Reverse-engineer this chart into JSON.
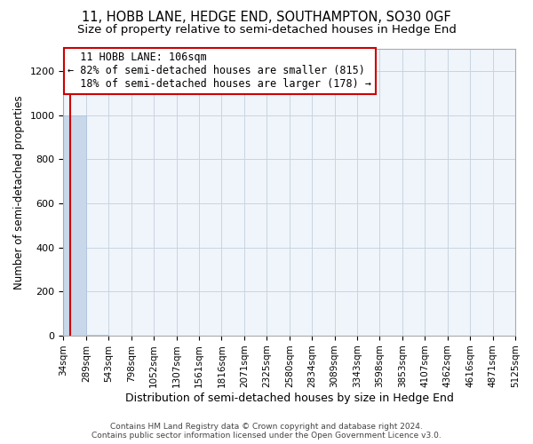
{
  "title": "11, HOBB LANE, HEDGE END, SOUTHAMPTON, SO30 0GF",
  "subtitle": "Size of property relative to semi-detached houses in Hedge End",
  "xlabel": "Distribution of semi-detached houses by size in Hedge End",
  "ylabel": "Number of semi-detached properties",
  "property_size": 106,
  "property_label": "11 HOBB LANE: 106sqm",
  "pct_smaller": 82,
  "count_smaller": 815,
  "pct_larger": 18,
  "count_larger": 178,
  "bar_color": "#c8d8ea",
  "bar_edge_color": "#aac0d8",
  "annotation_box_color": "#ffffff",
  "annotation_box_edge_color": "#cc0000",
  "vline_color": "#cc0000",
  "grid_color": "#c8d4e0",
  "footer_text": "Contains HM Land Registry data © Crown copyright and database right 2024.\nContains public sector information licensed under the Open Government Licence v3.0.",
  "bin_edges": [
    34,
    289,
    543,
    798,
    1052,
    1307,
    1561,
    1816,
    2071,
    2325,
    2580,
    2834,
    3089,
    3343,
    3598,
    3853,
    4107,
    4362,
    4616,
    4871,
    5125
  ],
  "bin_labels": [
    "34sqm",
    "289sqm",
    "543sqm",
    "798sqm",
    "1052sqm",
    "1307sqm",
    "1561sqm",
    "1816sqm",
    "2071sqm",
    "2325sqm",
    "2580sqm",
    "2834sqm",
    "3089sqm",
    "3343sqm",
    "3598sqm",
    "3853sqm",
    "4107sqm",
    "4362sqm",
    "4616sqm",
    "4871sqm",
    "5125sqm"
  ],
  "bar_heights": [
    1000,
    3,
    1,
    0,
    0,
    0,
    0,
    0,
    0,
    0,
    0,
    0,
    0,
    0,
    0,
    0,
    0,
    0,
    0,
    0
  ],
  "ylim": [
    0,
    1300
  ],
  "yticks": [
    0,
    200,
    400,
    600,
    800,
    1000,
    1200
  ],
  "title_fontsize": 10.5,
  "subtitle_fontsize": 9.5,
  "xlabel_fontsize": 9,
  "ylabel_fontsize": 8.5,
  "annotation_fontsize": 8.5,
  "tick_fontsize": 7.5,
  "footer_fontsize": 6.5
}
